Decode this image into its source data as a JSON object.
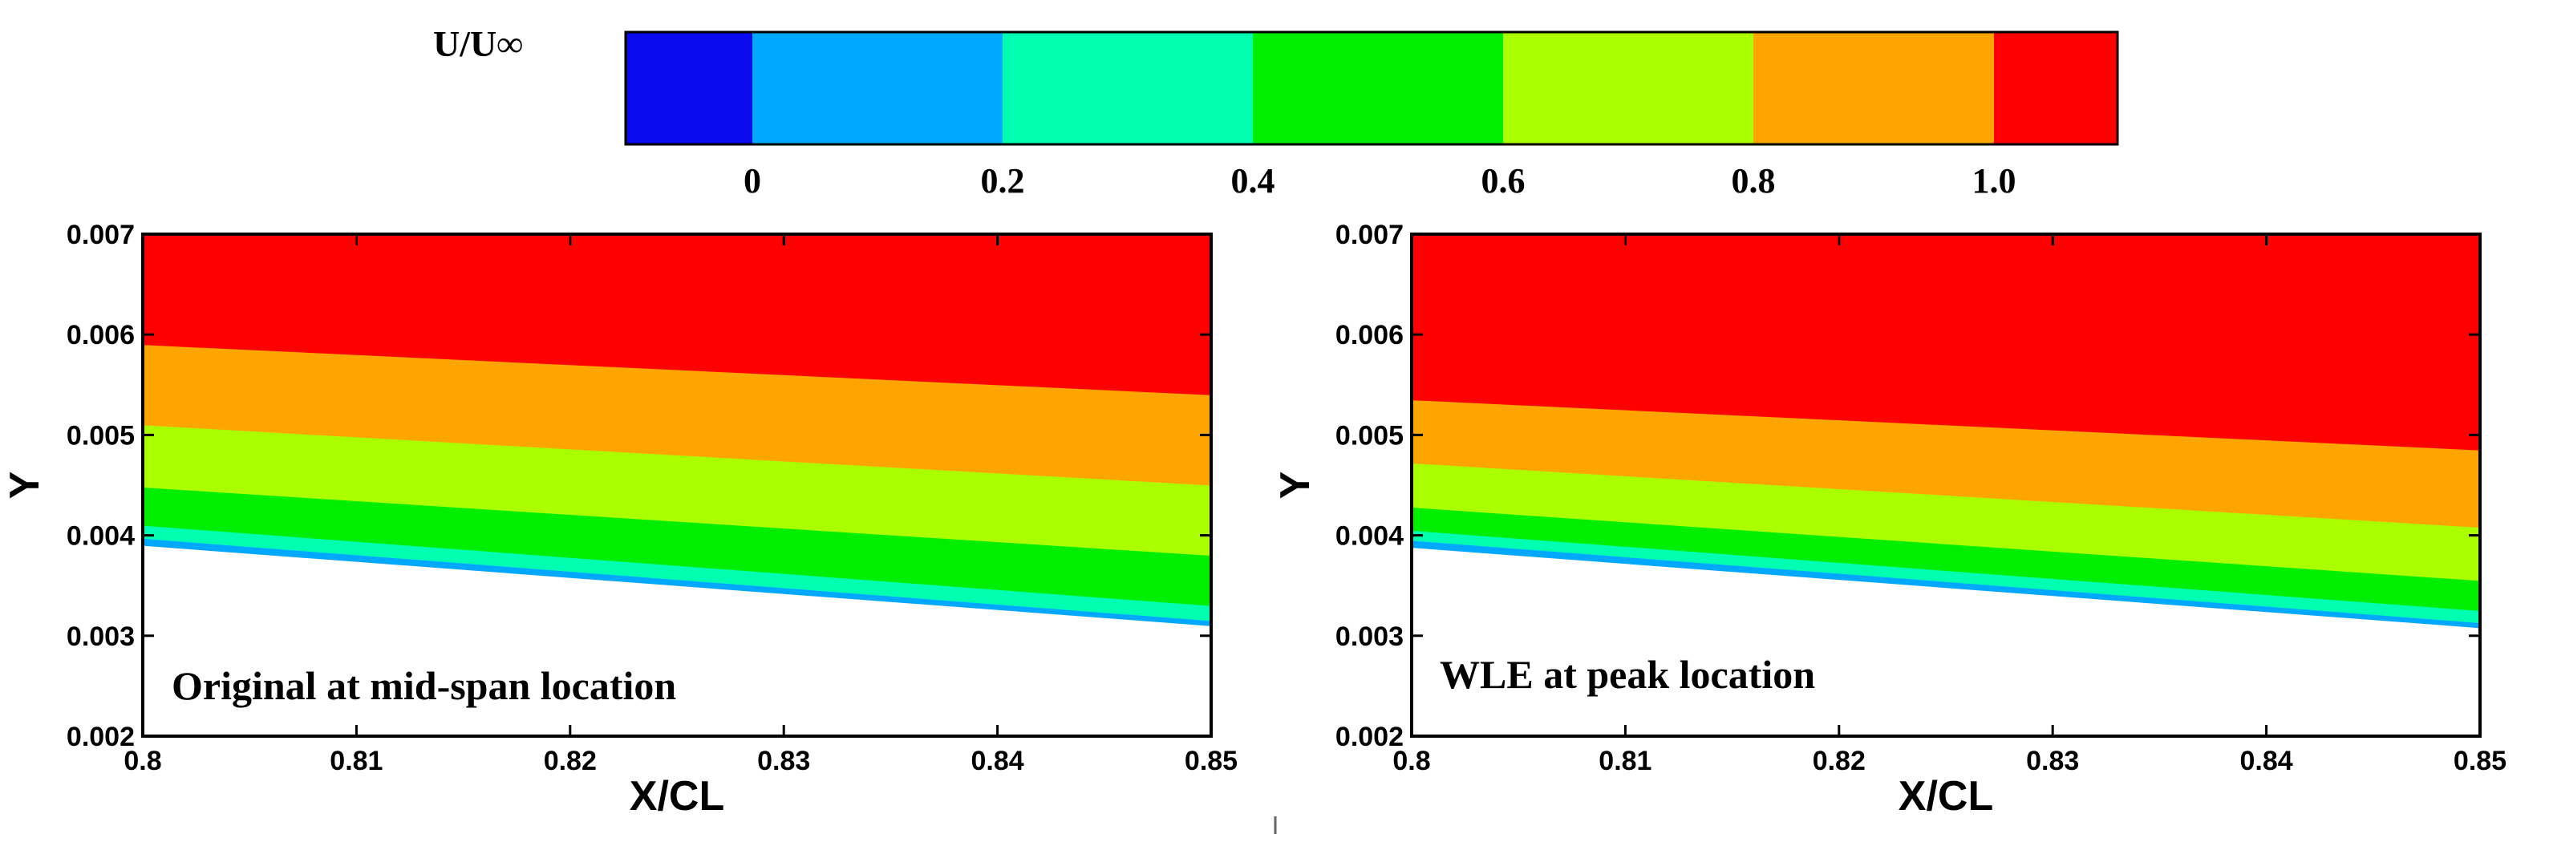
{
  "colorbar": {
    "variable": "U/U∞",
    "tick_labels": [
      "0",
      "0.2",
      "0.4",
      "0.6",
      "0.8",
      "1.0"
    ],
    "levels": [
      {
        "range": "< 0",
        "color": "#0a0aef"
      },
      {
        "range": "0 – 0.2",
        "color": "#00a8ff"
      },
      {
        "range": "0.2 – 0.4",
        "color": "#00ffb0"
      },
      {
        "range": "0.4 – 0.6",
        "color": "#00ee00"
      },
      {
        "range": "0.6 – 0.8",
        "color": "#aaff00"
      },
      {
        "range": "0.8 – 1.0",
        "color": "#ffa500"
      },
      {
        "range": "> 1.0",
        "color": "#ff0000"
      }
    ]
  },
  "chart_data": [
    {
      "type": "contour",
      "annotation": "Original at mid-span location",
      "xlabel": "X/CL",
      "ylabel": "Y",
      "xlim": [
        0.8,
        0.85
      ],
      "ylim": [
        0.002,
        0.007
      ],
      "xticks": [
        "0.8",
        "0.81",
        "0.82",
        "0.83",
        "0.84",
        "0.85"
      ],
      "yticks": [
        "0.002",
        "0.003",
        "0.004",
        "0.005",
        "0.006",
        "0.007"
      ],
      "bands": [
        {
          "level": "0 – 0.2",
          "color": "#00a8ff",
          "lower_y": [
            0.0039,
            0.0031
          ],
          "upper_y": [
            0.00397,
            0.00315
          ]
        },
        {
          "level": "0.2 – 0.4",
          "color": "#00ffb0",
          "lower_y": [
            0.00397,
            0.00315
          ],
          "upper_y": [
            0.0041,
            0.0033
          ]
        },
        {
          "level": "0.4 – 0.6",
          "color": "#00ee00",
          "lower_y": [
            0.0041,
            0.0033
          ],
          "upper_y": [
            0.00448,
            0.0038
          ]
        },
        {
          "level": "0.6 – 0.8",
          "color": "#aaff00",
          "lower_y": [
            0.00448,
            0.0038
          ],
          "upper_y": [
            0.0051,
            0.0045
          ]
        },
        {
          "level": "0.8 – 1.0",
          "color": "#ffa500",
          "lower_y": [
            0.0051,
            0.0045
          ],
          "upper_y": [
            0.0059,
            0.0054
          ]
        },
        {
          "level": "> 1.0",
          "color": "#ff0000",
          "lower_y": [
            0.0059,
            0.0054
          ],
          "upper_y": [
            0.007,
            0.007
          ]
        }
      ]
    },
    {
      "type": "contour",
      "annotation": "WLE at peak location",
      "xlabel": "X/CL",
      "ylabel": "Y",
      "xlim": [
        0.8,
        0.85
      ],
      "ylim": [
        0.002,
        0.007
      ],
      "xticks": [
        "0.8",
        "0.81",
        "0.82",
        "0.83",
        "0.84",
        "0.85"
      ],
      "yticks": [
        "0.002",
        "0.003",
        "0.004",
        "0.005",
        "0.006",
        "0.007"
      ],
      "bands": [
        {
          "level": "0 – 0.2",
          "color": "#00a8ff",
          "lower_y": [
            0.00388,
            0.00308
          ],
          "upper_y": [
            0.00395,
            0.00313
          ]
        },
        {
          "level": "0.2 – 0.4",
          "color": "#00ffb0",
          "lower_y": [
            0.00395,
            0.00313
          ],
          "upper_y": [
            0.00405,
            0.00325
          ]
        },
        {
          "level": "0.4 – 0.6",
          "color": "#00ee00",
          "lower_y": [
            0.00405,
            0.00325
          ],
          "upper_y": [
            0.00428,
            0.00355
          ]
        },
        {
          "level": "0.6 – 0.8",
          "color": "#aaff00",
          "lower_y": [
            0.00428,
            0.00355
          ],
          "upper_y": [
            0.00472,
            0.00408
          ]
        },
        {
          "level": "0.8 – 1.0",
          "color": "#ffa500",
          "lower_y": [
            0.00472,
            0.00408
          ],
          "upper_y": [
            0.00535,
            0.00485
          ]
        },
        {
          "level": "> 1.0",
          "color": "#ff0000",
          "lower_y": [
            0.00535,
            0.00485
          ],
          "upper_y": [
            0.007,
            0.007
          ]
        }
      ]
    }
  ]
}
